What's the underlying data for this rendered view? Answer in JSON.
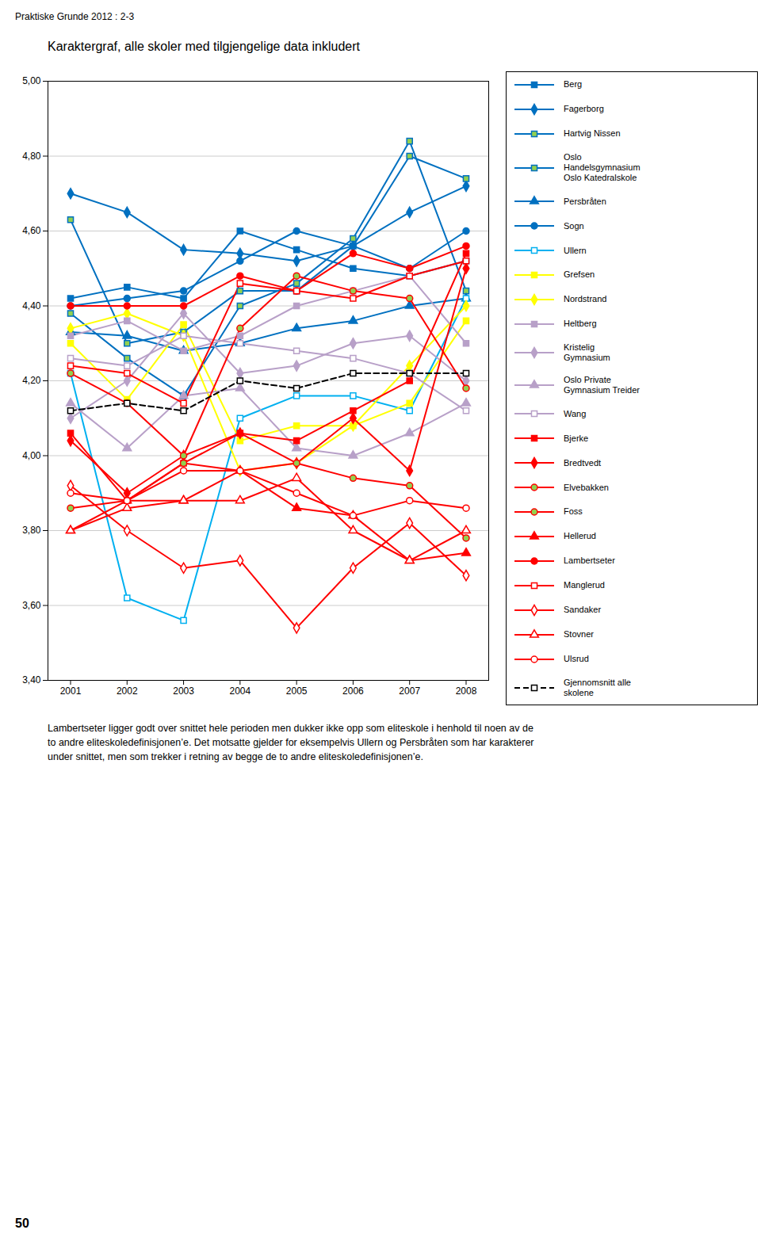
{
  "chart_data": {
    "type": "line",
    "header": "Praktiske Grunde 2012 : 2-3",
    "title": "Karaktergraf, alle skoler med tilgjengelige data inkludert",
    "footer": "Lambertseter ligger godt over snittet hele perioden men dukker ikke opp som eliteskole i henhold til noen av de\nto andre eliteskoledefinisjonen’e. Det motsatte gjelder for eksempelvis Ullern og Persbråten som har karakterer\nunder snittet, men som trekker i retning av begge de to andre eliteskoledefinisjonen’e.",
    "page_number": "50",
    "x": [
      2001,
      2002,
      2003,
      2004,
      2005,
      2006,
      2007,
      2008
    ],
    "xlim": [
      2000.6,
      2008.4
    ],
    "xticks": [
      2001,
      2002,
      2003,
      2004,
      2005,
      2006,
      2007,
      2008
    ],
    "ylim": [
      3.4,
      5.0
    ],
    "yticks": [
      {
        "value": 3.4,
        "label": "3,40"
      },
      {
        "value": 3.6,
        "label": "3,60"
      },
      {
        "value": 3.8,
        "label": "3,80"
      },
      {
        "value": 4.0,
        "label": "4,00"
      },
      {
        "value": 4.2,
        "label": "4,20"
      },
      {
        "value": 4.4,
        "label": "4,40"
      },
      {
        "value": 4.6,
        "label": "4,60"
      },
      {
        "value": 4.8,
        "label": "4,80"
      },
      {
        "value": 5.0,
        "label": "5,00"
      }
    ],
    "grid": "y",
    "legend": "right",
    "series": [
      {
        "name": "Berg",
        "color": "#0070C0",
        "marker": "square",
        "line_style": "solid",
        "values": [
          4.42,
          4.45,
          4.42,
          4.6,
          4.55,
          4.5,
          4.48,
          4.52
        ]
      },
      {
        "name": "Fagerborg",
        "color": "#0070C0",
        "marker": "diamond",
        "line_style": "solid",
        "values": [
          4.7,
          4.65,
          4.55,
          4.54,
          4.52,
          4.56,
          4.65,
          4.72
        ]
      },
      {
        "name": "Hartvig Nissen",
        "color": "#0070C0",
        "marker": "square-green",
        "line_style": "solid",
        "values": [
          4.63,
          4.3,
          4.33,
          4.44,
          4.44,
          4.56,
          4.8,
          4.74
        ]
      },
      {
        "name": "Oslo\nHandelsgymnasium\nOslo Katedralskole",
        "color": "#0070C0",
        "marker": "square-green",
        "line_style": "solid",
        "values": [
          4.38,
          4.26,
          4.16,
          4.4,
          4.46,
          4.58,
          4.84,
          4.44
        ]
      },
      {
        "name": "Persbråten",
        "color": "#0070C0",
        "marker": "triangle",
        "line_style": "solid",
        "values": [
          4.33,
          4.32,
          4.28,
          4.3,
          4.34,
          4.36,
          4.4,
          4.42
        ]
      },
      {
        "name": "Sogn",
        "color": "#0070C0",
        "marker": "circle",
        "line_style": "solid",
        "values": [
          4.4,
          4.42,
          4.44,
          4.52,
          4.6,
          4.56,
          4.5,
          4.6
        ]
      },
      {
        "name": "Ullern",
        "color": "#00B0F0",
        "marker": "square-open",
        "line_style": "solid",
        "values": [
          4.22,
          3.62,
          3.56,
          4.1,
          4.16,
          4.16,
          4.12,
          4.42
        ]
      },
      {
        "name": "Grefsen",
        "color": "#FFFF00",
        "marker": "square",
        "line_style": "solid",
        "values": [
          4.3,
          4.15,
          4.35,
          4.04,
          4.08,
          4.08,
          4.14,
          4.36
        ]
      },
      {
        "name": "Nordstrand",
        "color": "#FFFF00",
        "marker": "diamond",
        "line_style": "solid",
        "values": [
          4.34,
          4.38,
          4.32,
          3.96,
          3.98,
          4.08,
          4.24,
          4.4
        ]
      },
      {
        "name": "Heltberg",
        "color": "#B8A0C8",
        "marker": "square",
        "line_style": "solid",
        "values": [
          4.32,
          4.36,
          4.28,
          4.32,
          4.4,
          4.44,
          4.48,
          4.3
        ]
      },
      {
        "name": "Kristelig\nGymnasium",
        "color": "#B8A0C8",
        "marker": "diamond",
        "line_style": "solid",
        "values": [
          4.1,
          4.2,
          4.38,
          4.22,
          4.24,
          4.3,
          4.32,
          4.2
        ]
      },
      {
        "name": "Oslo Private\nGymnasium Treider",
        "color": "#B8A0C8",
        "marker": "triangle",
        "line_style": "solid",
        "values": [
          4.14,
          4.02,
          4.16,
          4.18,
          4.02,
          4.0,
          4.06,
          4.14
        ]
      },
      {
        "name": "Wang",
        "color": "#B8A0C8",
        "marker": "square-open",
        "line_style": "solid",
        "values": [
          4.26,
          4.24,
          4.32,
          4.3,
          4.28,
          4.26,
          4.22,
          4.12
        ]
      },
      {
        "name": "Bjerke",
        "color": "#FF0000",
        "marker": "square",
        "line_style": "solid",
        "values": [
          4.06,
          3.88,
          3.98,
          4.06,
          4.04,
          4.12,
          4.2,
          4.54
        ]
      },
      {
        "name": "Bredtvedt",
        "color": "#FF0000",
        "marker": "diamond",
        "line_style": "solid",
        "values": [
          4.04,
          3.9,
          4.0,
          4.06,
          3.98,
          4.1,
          3.96,
          4.5
        ]
      },
      {
        "name": "Elvebakken",
        "color": "#FF0000",
        "marker": "circle-green",
        "line_style": "solid",
        "values": [
          4.22,
          4.14,
          4.0,
          4.34,
          4.48,
          4.44,
          4.42,
          4.18
        ]
      },
      {
        "name": "Foss",
        "color": "#FF0000",
        "marker": "circle-green",
        "line_style": "solid",
        "values": [
          3.86,
          3.88,
          3.98,
          3.96,
          3.98,
          3.94,
          3.92,
          3.78
        ]
      },
      {
        "name": "Hellerud",
        "color": "#FF0000",
        "marker": "triangle",
        "line_style": "solid",
        "values": [
          3.8,
          3.88,
          3.88,
          3.96,
          3.86,
          3.84,
          3.72,
          3.74
        ]
      },
      {
        "name": "Lambertseter",
        "color": "#FF0000",
        "marker": "circle",
        "line_style": "solid",
        "values": [
          4.4,
          4.4,
          4.4,
          4.48,
          4.44,
          4.54,
          4.5,
          4.56
        ]
      },
      {
        "name": "Manglerud",
        "color": "#FF0000",
        "marker": "square-open",
        "line_style": "solid",
        "values": [
          4.24,
          4.22,
          4.14,
          4.46,
          4.44,
          4.42,
          4.48,
          4.52
        ]
      },
      {
        "name": "Sandaker",
        "color": "#FF0000",
        "marker": "diamond-open",
        "line_style": "solid",
        "values": [
          3.92,
          3.8,
          3.7,
          3.72,
          3.54,
          3.7,
          3.82,
          3.68
        ]
      },
      {
        "name": "Stovner",
        "color": "#FF0000",
        "marker": "triangle-open",
        "line_style": "solid",
        "values": [
          3.8,
          3.86,
          3.88,
          3.88,
          3.94,
          3.8,
          3.72,
          3.8
        ]
      },
      {
        "name": "Ulsrud",
        "color": "#FF0000",
        "marker": "circle-open",
        "line_style": "solid",
        "values": [
          3.9,
          3.88,
          3.96,
          3.96,
          3.9,
          3.84,
          3.88,
          3.86
        ]
      },
      {
        "name": "Gjennomsnitt alle\nskolene",
        "color": "#000000",
        "marker": "square-open",
        "line_style": "dashed",
        "values": [
          4.12,
          4.14,
          4.12,
          4.2,
          4.18,
          4.22,
          4.22,
          4.22
        ]
      }
    ]
  }
}
